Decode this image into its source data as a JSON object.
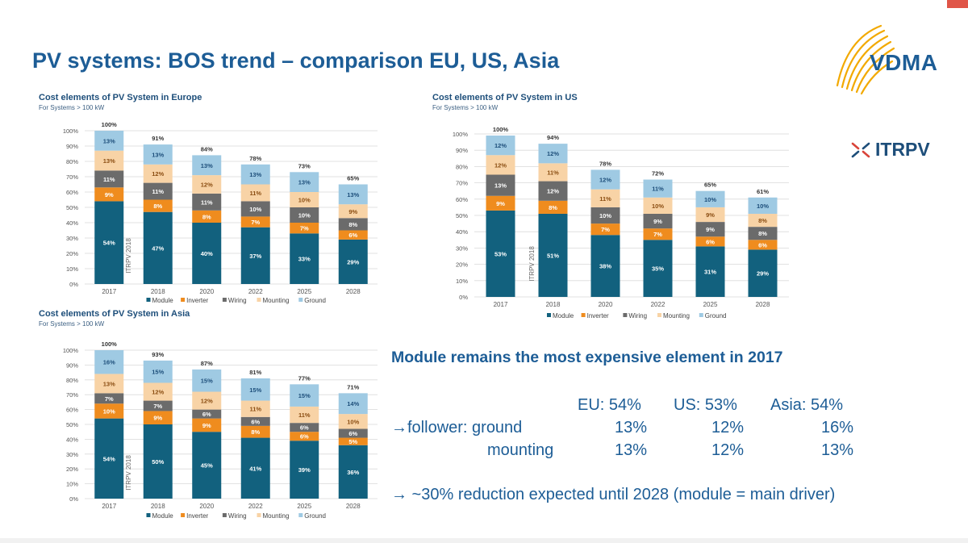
{
  "page": {
    "title": "PV systems: BOS trend – comparison EU, US, Asia"
  },
  "logos": {
    "vdma": "VDMA",
    "itrpv": "ITRPV"
  },
  "colors": {
    "Module": "#12617e",
    "Inverter": "#ef8c1e",
    "Wiring": "#6b6b6b",
    "Mounting": "#f8d3a6",
    "Ground": "#9fcae3",
    "title": "#1d5d96",
    "corner": "#e05548"
  },
  "chart_data": [
    {
      "id": "eu",
      "type": "bar",
      "stacked": true,
      "title": "Cost elements of PV System in Europe",
      "subtitle": "For Systems > 100 kW",
      "categories": [
        "2017",
        "2018",
        "2020",
        "2022",
        "2025",
        "2028"
      ],
      "ylim": [
        0,
        100
      ],
      "yticks": [
        "0%",
        "10%",
        "20%",
        "30%",
        "40%",
        "50%",
        "60%",
        "70%",
        "80%",
        "90%",
        "100%"
      ],
      "grid": true,
      "legend": "bottom",
      "vertical_label": "ITRPV 2018",
      "totals": [
        "100%",
        "91%",
        "84%",
        "78%",
        "73%",
        "65%"
      ],
      "series": [
        {
          "name": "Module",
          "values": [
            54,
            47,
            40,
            37,
            33,
            29
          ]
        },
        {
          "name": "Inverter",
          "values": [
            9,
            8,
            8,
            7,
            7,
            6
          ]
        },
        {
          "name": "Wiring",
          "values": [
            11,
            11,
            11,
            10,
            10,
            8
          ]
        },
        {
          "name": "Mounting",
          "values": [
            13,
            12,
            12,
            11,
            10,
            9
          ]
        },
        {
          "name": "Ground",
          "values": [
            13,
            13,
            13,
            13,
            13,
            13
          ]
        }
      ]
    },
    {
      "id": "us",
      "type": "bar",
      "stacked": true,
      "title": "Cost elements of PV System in US",
      "subtitle": "For Systems > 100 kW",
      "categories": [
        "2017",
        "2018",
        "2020",
        "2022",
        "2025",
        "2028"
      ],
      "ylim": [
        0,
        100
      ],
      "yticks": [
        "0%",
        "10%",
        "20%",
        "30%",
        "40%",
        "50%",
        "60%",
        "70%",
        "80%",
        "90%",
        "100%"
      ],
      "grid": true,
      "legend": "bottom",
      "vertical_label": "ITRPV 2018",
      "totals": [
        "100%",
        "94%",
        "78%",
        "72%",
        "65%",
        "61%"
      ],
      "series": [
        {
          "name": "Module",
          "values": [
            53,
            51,
            38,
            35,
            31,
            29
          ]
        },
        {
          "name": "Inverter",
          "values": [
            9,
            8,
            7,
            7,
            6,
            6
          ]
        },
        {
          "name": "Wiring",
          "values": [
            13,
            12,
            10,
            9,
            9,
            8
          ]
        },
        {
          "name": "Mounting",
          "values": [
            12,
            11,
            11,
            10,
            9,
            8
          ]
        },
        {
          "name": "Ground",
          "values": [
            12,
            12,
            12,
            11,
            10,
            10
          ]
        }
      ]
    },
    {
      "id": "asia",
      "type": "bar",
      "stacked": true,
      "title": "Cost elements of PV System in Asia",
      "subtitle": "For Systems > 100 kW",
      "categories": [
        "2017",
        "2018",
        "2020",
        "2022",
        "2025",
        "2028"
      ],
      "ylim": [
        0,
        100
      ],
      "yticks": [
        "0%",
        "10%",
        "20%",
        "30%",
        "40%",
        "50%",
        "60%",
        "70%",
        "80%",
        "90%",
        "100%"
      ],
      "grid": true,
      "legend": "bottom",
      "vertical_label": "ITRPV 2018",
      "totals": [
        "100%",
        "93%",
        "87%",
        "81%",
        "77%",
        "71%"
      ],
      "series": [
        {
          "name": "Module",
          "values": [
            54,
            50,
            45,
            41,
            39,
            36
          ]
        },
        {
          "name": "Inverter",
          "values": [
            10,
            9,
            9,
            8,
            6,
            5
          ]
        },
        {
          "name": "Wiring",
          "values": [
            7,
            7,
            6,
            6,
            6,
            6
          ]
        },
        {
          "name": "Mounting",
          "values": [
            13,
            12,
            12,
            11,
            11,
            10
          ]
        },
        {
          "name": "Ground",
          "values": [
            16,
            15,
            15,
            15,
            15,
            14
          ]
        }
      ]
    }
  ],
  "summary": {
    "heading": "Module remains the most expensive element in 2017",
    "eu_header": "EU: 54%",
    "us_header": "US: 53%",
    "asia_header": "Asia: 54%",
    "follower_label": "→follower: ground",
    "ground_eu": "13%",
    "ground_us": "12%",
    "ground_asia": "16%",
    "mounting_label": "mounting",
    "mounting_eu": "13%",
    "mounting_us": "12%",
    "mounting_asia": "13%",
    "conclusion": "→ ~30% reduction expected until 2028 (module = main driver)"
  }
}
